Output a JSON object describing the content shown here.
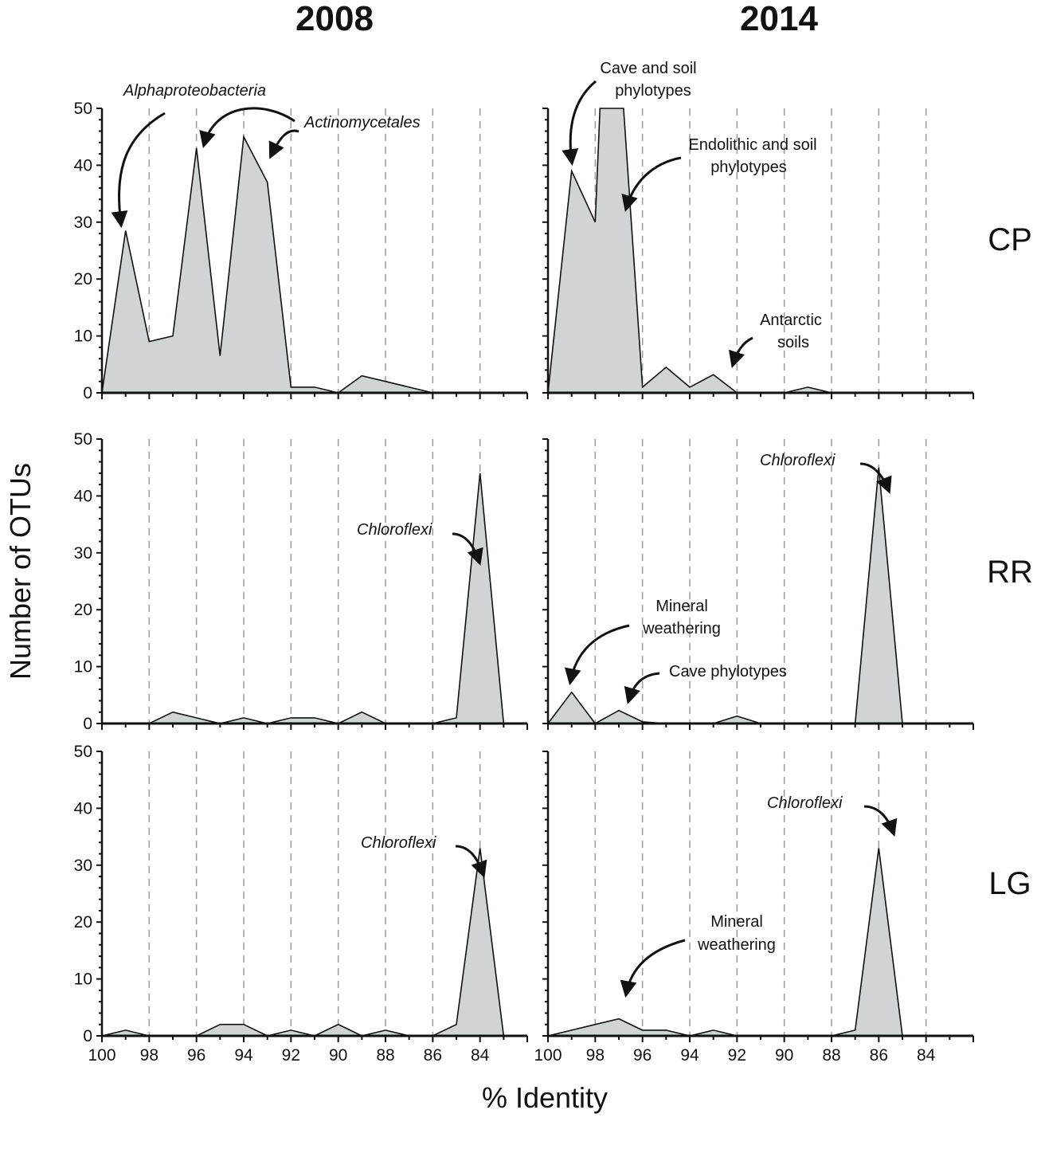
{
  "figure": {
    "column_titles": [
      "2008",
      "2014"
    ],
    "row_labels": [
      "CP",
      "RR",
      "LG"
    ],
    "ylabel": "Number of OTUs",
    "xlabel": "% Identity",
    "colors": {
      "fill": "#d0d4d4",
      "line": "#111111",
      "grid": "#9a9a9a"
    }
  },
  "chart_data": [
    {
      "id": "CP-2008",
      "type": "area",
      "column": "2008",
      "row": "CP",
      "title": "",
      "xlabel": "% Identity",
      "ylabel": "Number of OTUs",
      "xlim": [
        100,
        82
      ],
      "ylim": [
        0,
        50
      ],
      "xticks": [
        100,
        98,
        96,
        94,
        92,
        90,
        88,
        86,
        84
      ],
      "yticks": [
        0,
        10,
        20,
        30,
        40,
        50
      ],
      "grid": "vertical dashed",
      "show_xtick_labels": false,
      "x": [
        100,
        99,
        98,
        97,
        96,
        95,
        94,
        93,
        92,
        91,
        90,
        89,
        88,
        87,
        86,
        85,
        84,
        83,
        82
      ],
      "y": [
        0,
        28.5,
        9,
        10,
        43,
        6.5,
        45,
        37,
        1,
        1,
        0,
        3,
        2,
        1,
        0,
        0,
        0,
        0,
        0
      ],
      "annotations": [
        {
          "text": "Alphaproteobacteria",
          "italic": true
        },
        {
          "text": "Actinomycetales",
          "italic": true
        }
      ]
    },
    {
      "id": "CP-2014",
      "type": "area",
      "column": "2014",
      "row": "CP",
      "title": "",
      "xlabel": "% Identity",
      "ylabel": "Number of OTUs",
      "xlim": [
        100,
        82
      ],
      "ylim": [
        0,
        50
      ],
      "xticks": [
        100,
        98,
        96,
        94,
        92,
        90,
        88,
        86,
        84
      ],
      "yticks": [
        0,
        10,
        20,
        30,
        40,
        50
      ],
      "grid": "vertical dashed",
      "show_xtick_labels": false,
      "x": [
        100,
        99,
        98,
        97.8,
        96.8,
        96,
        95,
        94,
        93,
        92,
        91,
        90,
        89,
        88,
        87,
        86,
        85,
        84,
        83,
        82
      ],
      "y": [
        0,
        39,
        30,
        50,
        50,
        1,
        4.5,
        1,
        3.2,
        0,
        0,
        0,
        1,
        0,
        0,
        0,
        0,
        0,
        0,
        0
      ],
      "annotations": [
        {
          "text": "Cave and soil",
          "italic": false
        },
        {
          "text": "phylotypes",
          "italic": false
        },
        {
          "text": "Endolithic and soil",
          "italic": false
        },
        {
          "text": "phylotypes",
          "italic": false
        },
        {
          "text": "Antarctic",
          "italic": false
        },
        {
          "text": "soils",
          "italic": false
        }
      ]
    },
    {
      "id": "RR-2008",
      "type": "area",
      "column": "2008",
      "row": "RR",
      "title": "",
      "xlabel": "% Identity",
      "ylabel": "Number of OTUs",
      "xlim": [
        100,
        82
      ],
      "ylim": [
        0,
        50
      ],
      "xticks": [
        100,
        98,
        96,
        94,
        92,
        90,
        88,
        86,
        84
      ],
      "yticks": [
        0,
        10,
        20,
        30,
        40,
        50
      ],
      "grid": "vertical dashed",
      "show_xtick_labels": false,
      "x": [
        100,
        99,
        98,
        97,
        96,
        95,
        94,
        93,
        92,
        91,
        90,
        89,
        88,
        87,
        86,
        85,
        84,
        83
      ],
      "y": [
        0,
        0,
        0,
        2,
        1,
        0,
        1,
        0,
        1,
        1,
        0,
        2,
        0,
        0,
        0,
        1,
        44,
        0
      ],
      "annotations": [
        {
          "text": "Chloroflexi",
          "italic": true
        }
      ]
    },
    {
      "id": "RR-2014",
      "type": "area",
      "column": "2014",
      "row": "RR",
      "title": "",
      "xlabel": "% Identity",
      "ylabel": "Number of OTUs",
      "xlim": [
        100,
        82
      ],
      "ylim": [
        0,
        50
      ],
      "xticks": [
        100,
        98,
        96,
        94,
        92,
        90,
        88,
        86,
        84
      ],
      "yticks": [
        0,
        10,
        20,
        30,
        40,
        50
      ],
      "grid": "vertical dashed",
      "show_xtick_labels": false,
      "x": [
        100,
        99,
        98,
        97,
        96,
        95,
        94,
        93,
        92,
        91,
        90,
        89,
        88,
        87,
        86,
        85,
        84,
        83,
        82
      ],
      "y": [
        0,
        5.5,
        0,
        2.3,
        0.3,
        0,
        0,
        0,
        1.3,
        0,
        0,
        0,
        0,
        0,
        45,
        0,
        0,
        0,
        0
      ],
      "annotations": [
        {
          "text": "Mineral",
          "italic": false
        },
        {
          "text": "weathering",
          "italic": false
        },
        {
          "text": "Cave phylotypes",
          "italic": false
        },
        {
          "text": "Chloroflexi",
          "italic": true
        }
      ]
    },
    {
      "id": "LG-2008",
      "type": "area",
      "column": "2008",
      "row": "LG",
      "title": "",
      "xlabel": "% Identity",
      "ylabel": "Number of OTUs",
      "xlim": [
        100,
        82
      ],
      "ylim": [
        0,
        50
      ],
      "xticks": [
        100,
        98,
        96,
        94,
        92,
        90,
        88,
        86,
        84
      ],
      "yticks": [
        0,
        10,
        20,
        30,
        40,
        50
      ],
      "grid": "vertical dashed",
      "show_xtick_labels": true,
      "x": [
        100,
        99,
        98,
        97,
        96,
        95,
        94,
        93,
        92,
        91,
        90,
        89,
        88,
        87,
        86,
        85,
        84,
        83
      ],
      "y": [
        0,
        1,
        0,
        0,
        0,
        2,
        2,
        0,
        1,
        0,
        2,
        0,
        1,
        0,
        0,
        2,
        33,
        0
      ],
      "annotations": [
        {
          "text": "Chloroflexi",
          "italic": true
        }
      ]
    },
    {
      "id": "LG-2014",
      "type": "area",
      "column": "2014",
      "row": "LG",
      "title": "",
      "xlabel": "% Identity",
      "ylabel": "Number of OTUs",
      "xlim": [
        100,
        82
      ],
      "ylim": [
        0,
        50
      ],
      "xticks": [
        100,
        98,
        96,
        94,
        92,
        90,
        88,
        86,
        84
      ],
      "yticks": [
        0,
        10,
        20,
        30,
        40,
        50
      ],
      "grid": "vertical dashed",
      "show_xtick_labels": true,
      "x": [
        100,
        99,
        98,
        97,
        96,
        95,
        94,
        93,
        92,
        91,
        90,
        89,
        88,
        87,
        86,
        85,
        84,
        83,
        82
      ],
      "y": [
        0,
        1,
        2,
        3,
        1,
        1,
        0,
        1,
        0,
        0,
        0,
        0,
        0,
        1,
        33,
        0,
        0,
        0,
        0
      ],
      "annotations": [
        {
          "text": "Mineral",
          "italic": false
        },
        {
          "text": "weathering",
          "italic": false
        },
        {
          "text": "Chloroflexi",
          "italic": true
        }
      ]
    }
  ]
}
